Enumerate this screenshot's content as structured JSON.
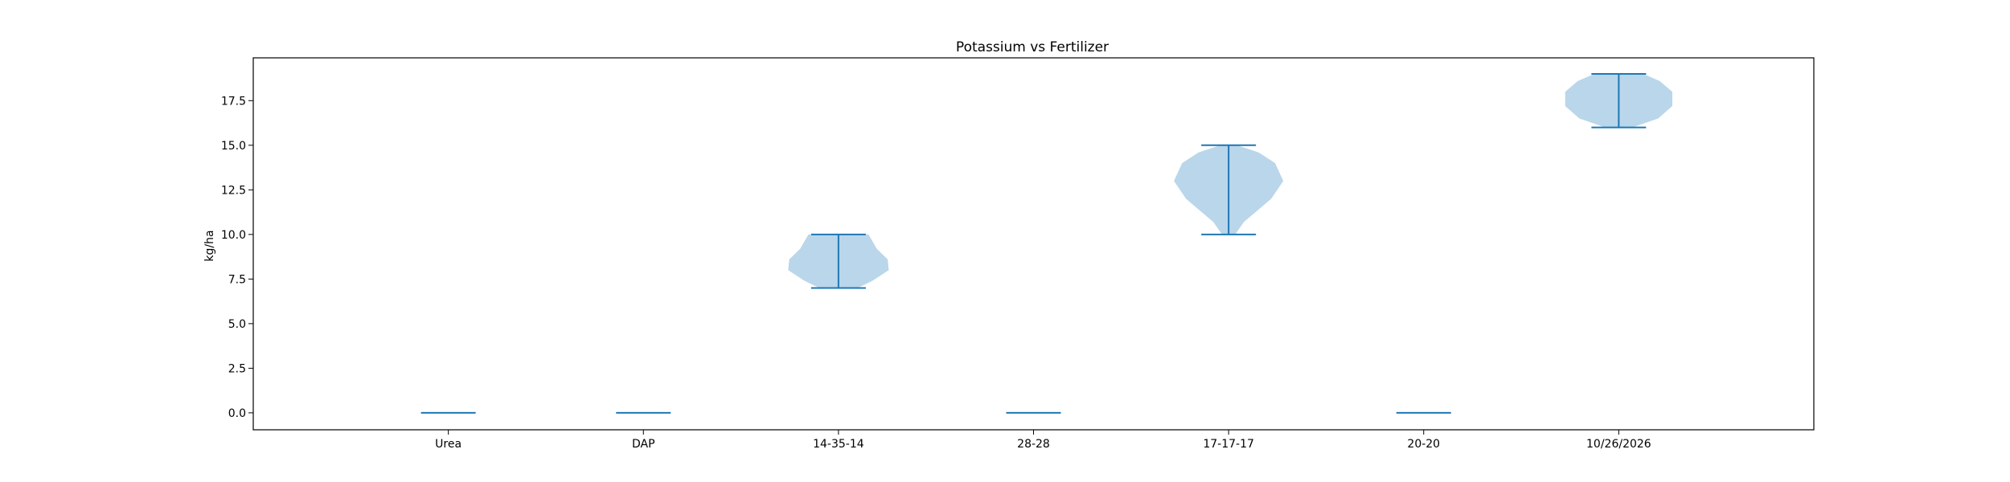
{
  "chart_data": {
    "type": "violin",
    "title": "Potassium vs Fertilizer",
    "xlabel": "",
    "ylabel": "kg/ha",
    "ylim": [
      -0.95,
      19.9
    ],
    "yticks": [
      0.0,
      2.5,
      5.0,
      7.5,
      10.0,
      12.5,
      15.0,
      17.5
    ],
    "ytick_labels": [
      "0.0",
      "2.5",
      "5.0",
      "7.5",
      "10.0",
      "12.5",
      "15.0",
      "17.5"
    ],
    "grid": false,
    "categories": [
      "Urea",
      "DAP",
      "14-35-14",
      "28-28",
      "17-17-17",
      "20-20",
      "10/26/2026"
    ],
    "violins": [
      {
        "category": "Urea",
        "min": 0,
        "max": 0,
        "density": []
      },
      {
        "category": "DAP",
        "min": 0,
        "max": 0,
        "density": []
      },
      {
        "category": "14-35-14",
        "min": 7,
        "max": 10,
        "density": [
          [
            7.0,
            0.35
          ],
          [
            7.4,
            0.62
          ],
          [
            8.0,
            0.92
          ],
          [
            8.6,
            0.9
          ],
          [
            9.2,
            0.7
          ],
          [
            10.0,
            0.55
          ]
        ]
      },
      {
        "category": "28-28",
        "min": 0,
        "max": 0,
        "density": []
      },
      {
        "category": "17-17-17",
        "min": 10,
        "max": 15,
        "density": [
          [
            10.0,
            0.12
          ],
          [
            10.7,
            0.28
          ],
          [
            11.4,
            0.55
          ],
          [
            12.0,
            0.78
          ],
          [
            13.0,
            1.0
          ],
          [
            14.0,
            0.85
          ],
          [
            14.6,
            0.55
          ],
          [
            15.0,
            0.15
          ]
        ]
      },
      {
        "category": "20-20",
        "min": 0,
        "max": 0,
        "density": []
      },
      {
        "category": "10/26/2026",
        "min": 16,
        "max": 19,
        "density": [
          [
            16.0,
            0.25
          ],
          [
            16.5,
            0.72
          ],
          [
            17.2,
            0.98
          ],
          [
            18.0,
            0.98
          ],
          [
            18.6,
            0.75
          ],
          [
            19.0,
            0.45
          ]
        ]
      }
    ],
    "colors": {
      "body": "#bad6ea",
      "line": "#1f77b4",
      "axes": "#000000"
    }
  }
}
